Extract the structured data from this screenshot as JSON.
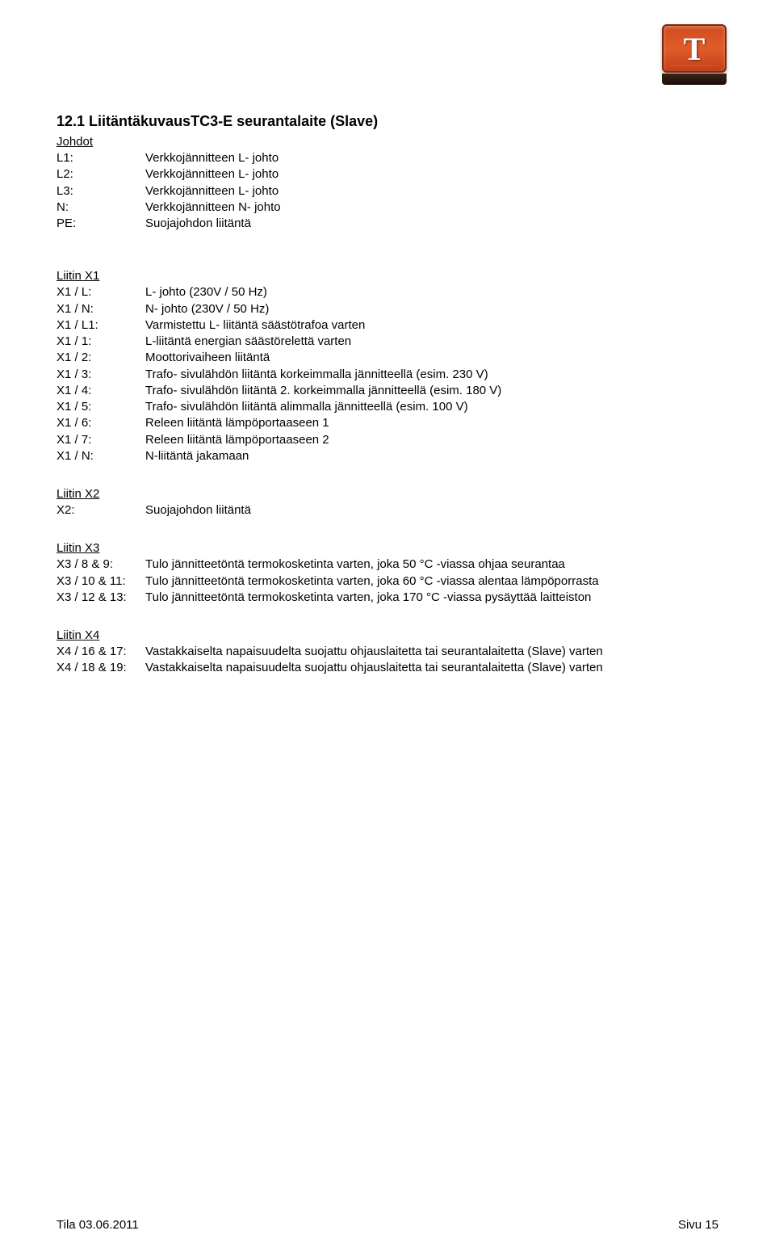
{
  "logo_letter": "T",
  "title": "12.1 LiitäntäkuvausTC3-E seurantalaite (Slave)",
  "sections": [
    {
      "head": "Johdot",
      "rows": [
        {
          "label": "L1:",
          "value": "Verkkojännitteen L- johto"
        },
        {
          "label": "L2:",
          "value": "Verkkojännitteen L- johto"
        },
        {
          "label": "L3:",
          "value": "Verkkojännitteen L- johto"
        },
        {
          "label": "N:",
          "value": "Verkkojännitteen N- johto"
        },
        {
          "label": "PE:",
          "value": "Suojajohdon liitäntä"
        }
      ]
    },
    {
      "head": "Liitin X1",
      "rows": [
        {
          "label": "X1 / L:",
          "value": "L- johto (230V / 50 Hz)"
        },
        {
          "label": "X1 / N:",
          "value": "N- johto (230V / 50 Hz)"
        },
        {
          "label": "X1 / L1:",
          "value": "Varmistettu L- liitäntä säästötrafoa varten"
        },
        {
          "label": "X1 / 1:",
          "value": "L-liitäntä energian säästörelettä varten"
        },
        {
          "label": "X1 / 2:",
          "value": "Moottorivaiheen liitäntä"
        },
        {
          "label": "X1 / 3:",
          "value": "Trafo- sivulähdön liitäntä korkeimmalla jännitteellä (esim. 230 V)"
        },
        {
          "label": "X1 / 4:",
          "value": "Trafo- sivulähdön liitäntä 2. korkeimmalla jännitteellä (esim. 180 V)"
        },
        {
          "label": "X1 / 5:",
          "value": "Trafo- sivulähdön liitäntä alimmalla jännitteellä (esim. 100 V)"
        },
        {
          "label": "X1 / 6:",
          "value": "Releen liitäntä lämpöportaaseen 1"
        },
        {
          "label": "X1 / 7:",
          "value": "Releen liitäntä lämpöportaaseen 2"
        },
        {
          "label": "X1 / N:",
          "value": "N-liitäntä jakamaan"
        }
      ]
    },
    {
      "head": "Liitin X2",
      "rows": [
        {
          "label": "X2:",
          "value": "Suojajohdon liitäntä"
        }
      ]
    },
    {
      "head": "Liitin X3",
      "rows": [
        {
          "label": "X3 / 8 & 9:",
          "value": "Tulo jännitteetöntä termokosketinta varten, joka 50 °C -viassa ohjaa seurantaa"
        },
        {
          "label": "X3 / 10 & 11:",
          "value": "Tulo jännitteetöntä termokosketinta varten, joka 60 °C -viassa alentaa lämpöporrasta"
        },
        {
          "label": "X3 / 12 & 13:",
          "value": "Tulo jännitteetöntä termokosketinta varten, joka 170 °C -viassa pysäyttää laitteiston"
        }
      ]
    },
    {
      "head": "Liitin X4",
      "rows": [
        {
          "label": "X4 / 16 & 17:",
          "value": "Vastakkaiselta napaisuudelta suojattu ohjauslaitetta tai seurantalaitetta (Slave) varten"
        },
        {
          "label": "X4 / 18 & 19:",
          "value": "Vastakkaiselta napaisuudelta suojattu ohjauslaitetta tai seurantalaitetta (Slave) varten"
        }
      ]
    }
  ],
  "footer": {
    "left": "Tila 03.06.2011",
    "right": "Sivu  15"
  }
}
